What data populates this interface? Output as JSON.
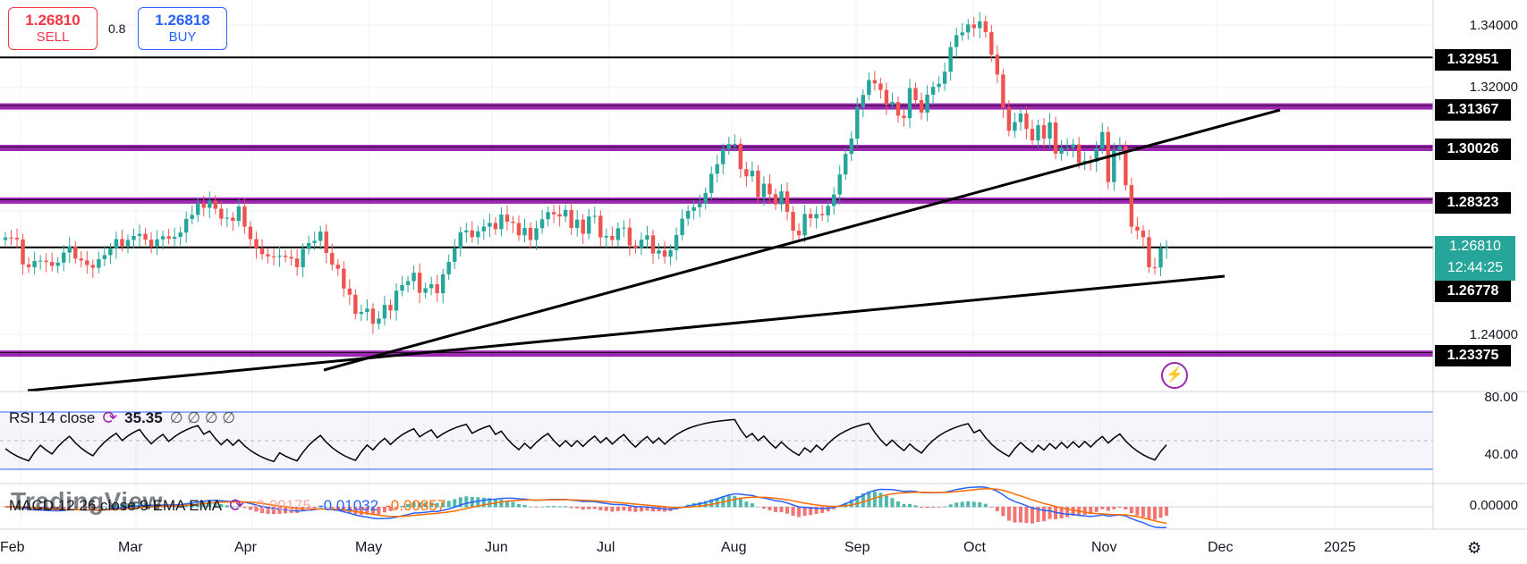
{
  "trade": {
    "sell_price": "1.26810",
    "sell_label": "SELL",
    "spread": "0.8",
    "buy_price": "1.26818",
    "buy_label": "BUY"
  },
  "price_axis": {
    "ticks": [
      "1.34000",
      "1.32000",
      "1.24000"
    ],
    "level_tags": [
      "1.32951",
      "1.31367",
      "1.30026",
      "1.28323",
      "1.26778",
      "1.23375"
    ],
    "current_price": "1.26810",
    "countdown": "12:44:25"
  },
  "time_axis": [
    "Feb",
    "Mar",
    "Apr",
    "May",
    "Jun",
    "Jul",
    "Aug",
    "Sep",
    "Oct",
    "Nov",
    "Dec",
    "2025"
  ],
  "rsi": {
    "title": "RSI 14 close",
    "value": "35.35",
    "extra": "∅ ∅ ∅ ∅",
    "ticks": [
      "80.00",
      "40.00"
    ]
  },
  "macd": {
    "title": "MACD 12 26 close 9 EMA EMA",
    "hist": "-0.00175",
    "macd": "-0.01032",
    "signal": "-0.00857",
    "tick": "0.00000"
  },
  "watermark": "TradingView",
  "colors": {
    "up": "#26a69a",
    "down": "#ef5350",
    "zone": "#9c27b0",
    "rsi_band": "#2962ff",
    "macd_line": "#2962ff",
    "signal_line": "#ff6d00"
  },
  "chart_data": {
    "type": "candlestick",
    "price_range": [
      1.22,
      1.345
    ],
    "horizontal_levels": [
      {
        "price": 1.32951,
        "kind": "line"
      },
      {
        "price": 1.31367,
        "kind": "zone"
      },
      {
        "price": 1.30026,
        "kind": "zone"
      },
      {
        "price": 1.28323,
        "kind": "zone"
      },
      {
        "price": 1.2681,
        "kind": "line"
      },
      {
        "price": 1.23375,
        "kind": "zone"
      }
    ],
    "trendlines": [
      {
        "from": [
          "Apr 22",
          1.2299
        ],
        "to": [
          "Nov 29",
          1.3133
        ]
      },
      {
        "from": [
          "Jan 30",
          1.2297
        ],
        "to": [
          "Dec 1",
          1.2708
        ]
      }
    ],
    "closes": [
      1.2713,
      1.2712,
      1.2707,
      1.2626,
      1.2617,
      1.2637,
      1.2638,
      1.2634,
      1.2621,
      1.2632,
      1.2664,
      1.2684,
      1.2645,
      1.2639,
      1.2624,
      1.2615,
      1.2643,
      1.2656,
      1.2677,
      1.2708,
      1.2685,
      1.2705,
      1.2718,
      1.2725,
      1.2706,
      1.2685,
      1.2707,
      1.2717,
      1.2709,
      1.2715,
      1.2729,
      1.2773,
      1.2786,
      1.2824,
      1.2809,
      1.2832,
      1.2806,
      1.2774,
      1.2777,
      1.2767,
      1.2813,
      1.2748,
      1.2708,
      1.2677,
      1.2659,
      1.2652,
      1.2651,
      1.2654,
      1.265,
      1.2645,
      1.2617,
      1.2676,
      1.2695,
      1.2702,
      1.2732,
      1.2663,
      1.2625,
      1.2612,
      1.2548,
      1.2528,
      1.2466,
      1.2472,
      1.2483,
      1.2434,
      1.2451,
      1.2495,
      1.2477,
      1.2541,
      1.2559,
      1.2572,
      1.2599,
      1.2534,
      1.2549,
      1.2562,
      1.2533,
      1.2594,
      1.2634,
      1.2679,
      1.273,
      1.2736,
      1.2714,
      1.2733,
      1.2748,
      1.276,
      1.274,
      1.2787,
      1.2764,
      1.276,
      1.272,
      1.2744,
      1.2705,
      1.2743,
      1.2772,
      1.2795,
      1.2788,
      1.2781,
      1.2802,
      1.2744,
      1.2771,
      1.2725,
      1.2781,
      1.2783,
      1.2713,
      1.2718,
      1.2705,
      1.2743,
      1.2745,
      1.2687,
      1.2679,
      1.2706,
      1.272,
      1.2661,
      1.2671,
      1.2651,
      1.2672,
      1.2721,
      1.2774,
      1.2799,
      1.2811,
      1.2822,
      1.2857,
      1.2919,
      1.295,
      1.2999,
      1.3015,
      1.3016,
      1.2934,
      1.2911,
      1.2929,
      1.2844,
      1.2887,
      1.2853,
      1.282,
      1.2862,
      1.2796,
      1.2735,
      1.272,
      1.2789,
      1.2775,
      1.2789,
      1.2785,
      1.2815,
      1.2852,
      1.2917,
      1.2983,
      1.3033,
      1.3135,
      1.3174,
      1.3222,
      1.3211,
      1.319,
      1.3142,
      1.3151,
      1.3107,
      1.3099,
      1.3196,
      1.3157,
      1.3117,
      1.3175,
      1.32,
      1.321,
      1.3249,
      1.3329,
      1.3367,
      1.3376,
      1.3402,
      1.339,
      1.3412,
      1.3377,
      1.3304,
      1.324,
      1.3133,
      1.3058,
      1.3086,
      1.3114,
      1.3064,
      1.3027,
      1.3076,
      1.3033,
      1.3085,
      1.2984,
      1.3004,
      1.3004,
      1.3014,
      1.2954,
      1.2961,
      1.2958,
      1.3001,
      1.3054,
      1.2892,
      1.2996,
      1.3007,
      1.2882,
      1.2748,
      1.2735,
      1.2714,
      1.2617,
      1.2616,
      1.2678,
      1.2681
    ],
    "rsi_band": [
      70,
      30
    ],
    "macd_zero": 0
  }
}
